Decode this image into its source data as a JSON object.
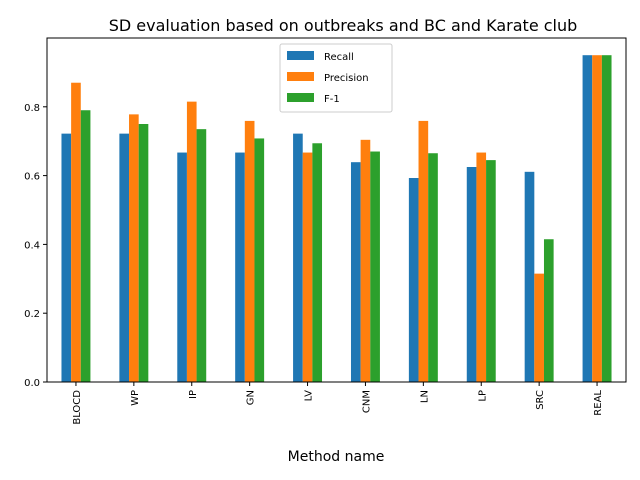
{
  "chart_data": {
    "type": "bar",
    "title": "SD evaluation based on outbreaks and BC and Karate club",
    "xlabel": "Method name",
    "ylabel": "",
    "ylim": [
      0,
      1.0
    ],
    "yticks": [
      0.0,
      0.2,
      0.4,
      0.6,
      0.8
    ],
    "ytick_labels": [
      "0.0",
      "0.2",
      "0.4",
      "0.6",
      "0.8"
    ],
    "categories": [
      "BLOCD",
      "WP",
      "IP",
      "GN",
      "LV",
      "CNM",
      "LN",
      "LP",
      "SRC",
      "REAL"
    ],
    "series": [
      {
        "name": "Recall",
        "color": "#1f77b4",
        "values": [
          0.722,
          0.722,
          0.667,
          0.667,
          0.722,
          0.639,
          0.593,
          0.625,
          0.611,
          0.95
        ]
      },
      {
        "name": "Precision",
        "color": "#ff7f0e",
        "values": [
          0.87,
          0.778,
          0.815,
          0.759,
          0.667,
          0.704,
          0.759,
          0.667,
          0.315,
          0.95
        ]
      },
      {
        "name": "F-1",
        "color": "#2ca02c",
        "values": [
          0.79,
          0.75,
          0.735,
          0.708,
          0.694,
          0.67,
          0.665,
          0.645,
          0.415,
          0.95
        ]
      }
    ],
    "legend_position": "top-center",
    "grid": false
  }
}
